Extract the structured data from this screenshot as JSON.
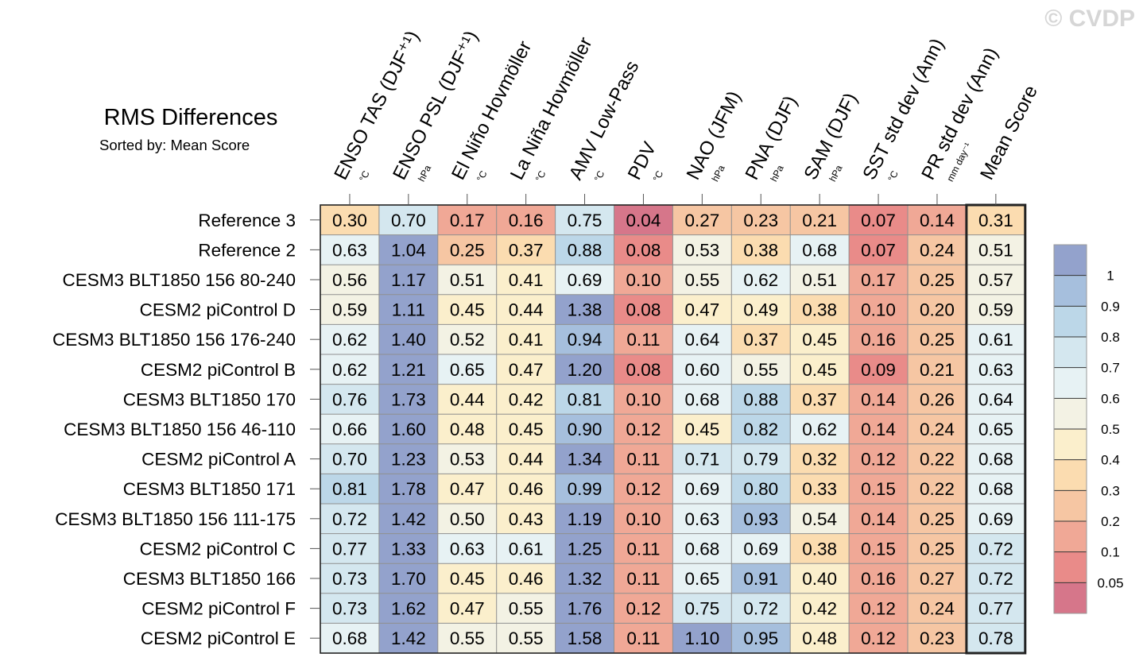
{
  "watermark": "© CVDP",
  "title": "RMS Differences",
  "subtitle": "Sorted by: Mean Score",
  "chart_data": {
    "type": "heatmap",
    "columns": [
      {
        "label": "ENSO TAS (DJF⁺¹)",
        "unit": "°C"
      },
      {
        "label": "ENSO PSL (DJF⁺¹)",
        "unit": "hPa"
      },
      {
        "label": "El Niño Hovmöller",
        "unit": "°C"
      },
      {
        "label": "La Niña Hovmöller",
        "unit": "°C"
      },
      {
        "label": "AMV Low-Pass",
        "unit": "°C"
      },
      {
        "label": "PDV",
        "unit": "°C"
      },
      {
        "label": "NAO (JFM)",
        "unit": "hPa"
      },
      {
        "label": "PNA (DJF)",
        "unit": "hPa"
      },
      {
        "label": "SAM (DJF)",
        "unit": "hPa"
      },
      {
        "label": "SST std dev (Ann)",
        "unit": "°C"
      },
      {
        "label": "PR std dev (Ann)",
        "unit": "mm day⁻¹"
      },
      {
        "label": "Mean Score",
        "unit": ""
      }
    ],
    "rows": [
      "Reference 3",
      "Reference 2",
      "CESM3 BLT1850 156 80-240",
      "CESM2 piControl D",
      "CESM3 BLT1850 156 176-240",
      "CESM2 piControl B",
      "CESM3 BLT1850 170",
      "CESM3 BLT1850 156 46-110",
      "CESM2 piControl A",
      "CESM3 BLT1850 171",
      "CESM3 BLT1850 156 111-175",
      "CESM2 piControl C",
      "CESM3 BLT1850 166",
      "CESM2 piControl F",
      "CESM2 piControl E"
    ],
    "values": [
      [
        "0.30",
        "0.70",
        "0.17",
        "0.16",
        "0.75",
        "0.04",
        "0.27",
        "0.23",
        "0.21",
        "0.07",
        "0.14",
        "0.31"
      ],
      [
        "0.63",
        "1.04",
        "0.25",
        "0.37",
        "0.88",
        "0.08",
        "0.53",
        "0.38",
        "0.68",
        "0.07",
        "0.24",
        "0.51"
      ],
      [
        "0.56",
        "1.17",
        "0.51",
        "0.41",
        "0.69",
        "0.10",
        "0.55",
        "0.62",
        "0.51",
        "0.17",
        "0.25",
        "0.57"
      ],
      [
        "0.59",
        "1.11",
        "0.45",
        "0.44",
        "1.38",
        "0.08",
        "0.47",
        "0.49",
        "0.38",
        "0.10",
        "0.20",
        "0.59"
      ],
      [
        "0.62",
        "1.40",
        "0.52",
        "0.41",
        "0.94",
        "0.11",
        "0.64",
        "0.37",
        "0.45",
        "0.16",
        "0.25",
        "0.61"
      ],
      [
        "0.62",
        "1.21",
        "0.65",
        "0.47",
        "1.20",
        "0.08",
        "0.60",
        "0.55",
        "0.45",
        "0.09",
        "0.21",
        "0.63"
      ],
      [
        "0.76",
        "1.73",
        "0.44",
        "0.42",
        "0.81",
        "0.10",
        "0.68",
        "0.88",
        "0.37",
        "0.14",
        "0.26",
        "0.64"
      ],
      [
        "0.66",
        "1.60",
        "0.48",
        "0.45",
        "0.90",
        "0.12",
        "0.45",
        "0.82",
        "0.62",
        "0.14",
        "0.24",
        "0.65"
      ],
      [
        "0.70",
        "1.23",
        "0.53",
        "0.44",
        "1.34",
        "0.11",
        "0.71",
        "0.79",
        "0.32",
        "0.12",
        "0.22",
        "0.68"
      ],
      [
        "0.81",
        "1.78",
        "0.47",
        "0.46",
        "0.99",
        "0.12",
        "0.69",
        "0.80",
        "0.33",
        "0.15",
        "0.22",
        "0.68"
      ],
      [
        "0.72",
        "1.42",
        "0.50",
        "0.43",
        "1.19",
        "0.10",
        "0.63",
        "0.93",
        "0.54",
        "0.14",
        "0.25",
        "0.69"
      ],
      [
        "0.77",
        "1.33",
        "0.63",
        "0.61",
        "1.25",
        "0.11",
        "0.68",
        "0.69",
        "0.38",
        "0.15",
        "0.25",
        "0.72"
      ],
      [
        "0.73",
        "1.70",
        "0.45",
        "0.46",
        "1.32",
        "0.11",
        "0.65",
        "0.91",
        "0.40",
        "0.16",
        "0.27",
        "0.72"
      ],
      [
        "0.73",
        "1.62",
        "0.47",
        "0.55",
        "1.76",
        "0.12",
        "0.75",
        "0.72",
        "0.42",
        "0.12",
        "0.24",
        "0.77"
      ],
      [
        "0.68",
        "1.42",
        "0.55",
        "0.55",
        "1.58",
        "0.11",
        "1.10",
        "0.95",
        "0.48",
        "0.12",
        "0.23",
        "0.78"
      ]
    ],
    "colorbar": {
      "ticks": [
        "1",
        "0.9",
        "0.8",
        "0.7",
        "0.6",
        "0.5",
        "0.4",
        "0.3",
        "0.2",
        "0.1",
        "0.05"
      ],
      "colors": [
        "#93a2cc",
        "#a6bfdd",
        "#bcd7e8",
        "#d4e7ef",
        "#e7f2f4",
        "#f3f2e4",
        "#fbefcc",
        "#fbdcb0",
        "#f6c6a3",
        "#f0a896",
        "#e98b89",
        "#d6768a"
      ]
    },
    "bins": [
      0.05,
      0.1,
      0.2,
      0.3,
      0.4,
      0.5,
      0.6,
      0.7,
      0.8,
      0.9,
      1.0
    ]
  }
}
